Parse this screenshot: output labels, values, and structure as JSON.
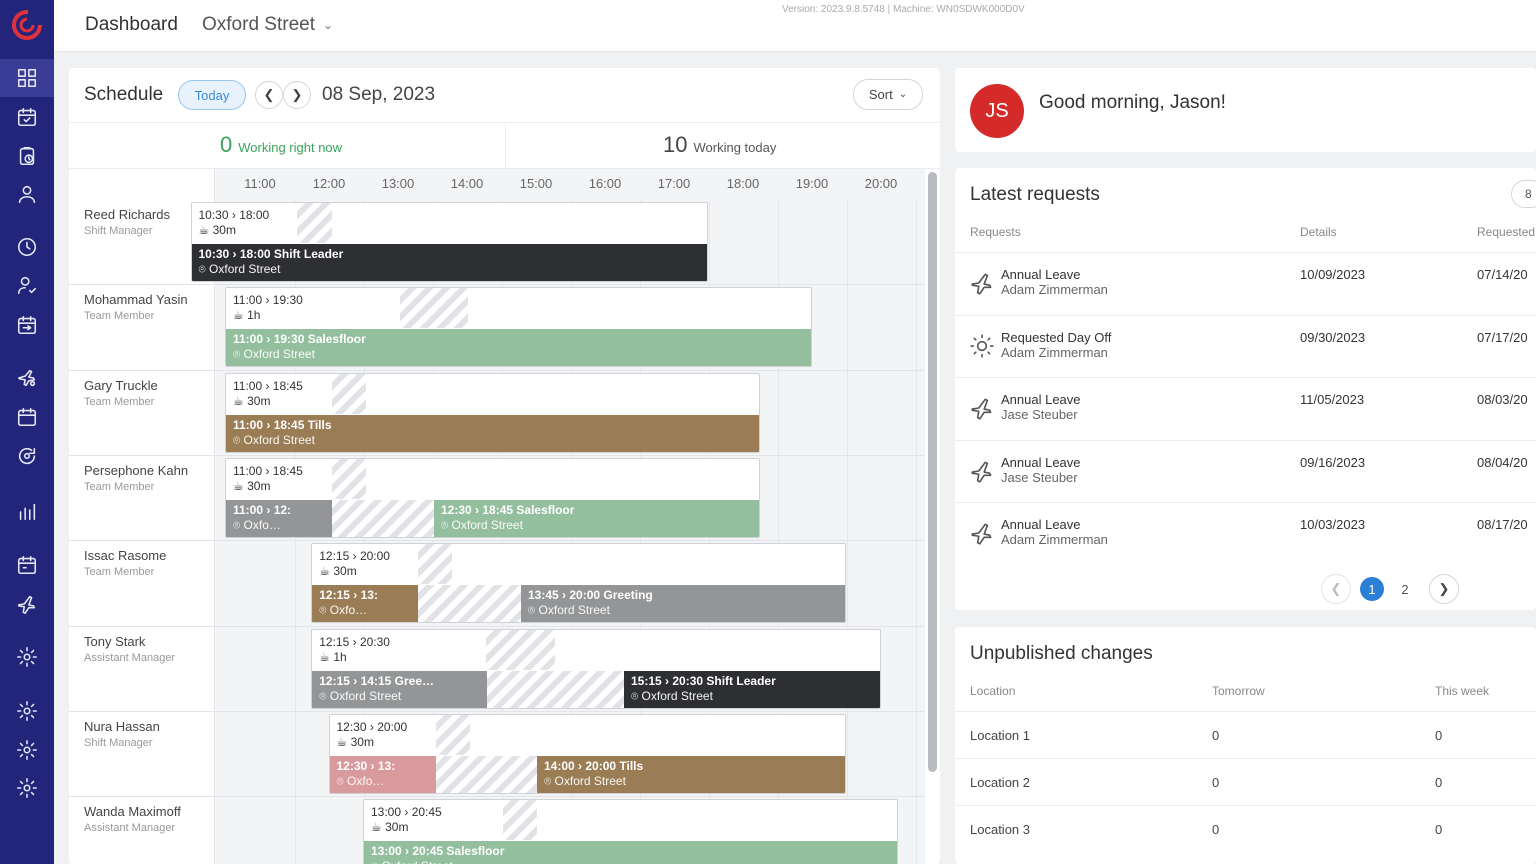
{
  "topbar": {
    "title": "Dashboard",
    "location": "Oxford Street",
    "version": "Version: 2023.9.8.5748 | Machine: WN0SDWK000D0V"
  },
  "sidebar": {
    "items": [
      "grid-icon",
      "calendar-check-icon",
      "clipboard-clock-icon",
      "user-icon",
      "clock-icon",
      "user-check-icon",
      "calendar-swap-icon",
      "plane-settings-icon",
      "calendar-icon",
      "refresh-settings-icon",
      "bar-chart-icon",
      "calendar-alt-icon",
      "plane-icon",
      "gear-icon",
      "gear-icon",
      "gear-icon",
      "gear-icon"
    ]
  },
  "schedule": {
    "title": "Schedule",
    "today_label": "Today",
    "date": "08 Sep, 2023",
    "sort_label": "Sort",
    "working_now_count": "0",
    "working_now_label": "Working right now",
    "working_today_count": "10",
    "working_today_label": "Working today",
    "hours": [
      "11:00",
      "12:00",
      "13:00",
      "14:00",
      "15:00",
      "16:00",
      "17:00",
      "18:00",
      "19:00",
      "20:00"
    ],
    "employees": [
      {
        "name": "Reed Richards",
        "role": "Shift Manager",
        "summary": "10:30 › 18:00",
        "break": "30m",
        "segments": [
          {
            "time": "10:30 › 18:00",
            "label": "Shift Leader",
            "location": "Oxford Street",
            "color": "#2e2f33"
          }
        ]
      },
      {
        "name": "Mohammad Yasin",
        "role": "Team Member",
        "summary": "11:00 › 19:30",
        "break": "1h",
        "segments": [
          {
            "time": "11:00 › 19:30",
            "label": "Salesfloor",
            "location": "Oxford Street",
            "color": "#93bf9f"
          }
        ]
      },
      {
        "name": "Gary Truckle",
        "role": "Team Member",
        "summary": "11:00 › 18:45",
        "break": "30m",
        "segments": [
          {
            "time": "11:00 › 18:45",
            "label": "Tills",
            "location": "Oxford Street",
            "color": "#9a7c55"
          }
        ]
      },
      {
        "name": "Persephone Kahn",
        "role": "Team Member",
        "summary": "11:00 › 18:45",
        "break": "30m",
        "segments": [
          {
            "time": "11:00 › 12:",
            "label": "",
            "location": "Oxfo…",
            "color": "#939597"
          },
          {
            "time": "12:30 › 18:45",
            "label": "Salesfloor",
            "location": "Oxford Street",
            "color": "#93bf9f"
          }
        ]
      },
      {
        "name": "Issac Rasome",
        "role": "Team Member",
        "summary": "12:15 › 20:00",
        "break": "30m",
        "segments": [
          {
            "time": "12:15 › 13:",
            "label": "",
            "location": "Oxfo…",
            "color": "#9a7c55"
          },
          {
            "time": "13:45 › 20:00",
            "label": "Greeting",
            "location": "Oxford Street",
            "color": "#939597"
          }
        ]
      },
      {
        "name": "Tony Stark",
        "role": "Assistant Manager",
        "summary": "12:15 › 20:30",
        "break": "1h",
        "segments": [
          {
            "time": "12:15 › 14:15",
            "label": "Gree…",
            "location": "Oxford Street",
            "color": "#939597"
          },
          {
            "time": "15:15 › 20:30",
            "label": "Shift Leader",
            "location": "Oxford Street",
            "color": "#2e2f33"
          }
        ]
      },
      {
        "name": "Nura Hassan",
        "role": "Shift Manager",
        "summary": "12:30 › 20:00",
        "break": "30m",
        "segments": [
          {
            "time": "12:30 › 13:",
            "label": "",
            "location": "Oxfo…",
            "color": "#d99a9e"
          },
          {
            "time": "14:00 › 20:00",
            "label": "Tills",
            "location": "Oxford Street",
            "color": "#9a7c55"
          }
        ]
      },
      {
        "name": "Wanda Maximoff",
        "role": "Assistant Manager",
        "summary": "13:00 › 20:45",
        "break": "30m",
        "segments": [
          {
            "time": "13:00 › 20:45",
            "label": "Salesfloor",
            "location": "Oxford Street",
            "color": "#93bf9f"
          }
        ]
      }
    ]
  },
  "greeting": {
    "initials": "JS",
    "text": "Good morning, Jason!"
  },
  "requests": {
    "title": "Latest requests",
    "badge": "8",
    "columns": [
      "Requests",
      "Details",
      "Requested"
    ],
    "rows": [
      {
        "icon": "plane-icon",
        "type": "Annual Leave",
        "who": "Adam Zimmerman",
        "details": "10/09/2023",
        "requested": "07/14/20"
      },
      {
        "icon": "sun-icon",
        "type": "Requested Day Off",
        "who": "Adam Zimmerman",
        "details": "09/30/2023",
        "requested": "07/17/20"
      },
      {
        "icon": "plane-icon",
        "type": "Annual Leave",
        "who": "Jase Steuber",
        "details": "11/05/2023",
        "requested": "08/03/20"
      },
      {
        "icon": "plane-icon",
        "type": "Annual Leave",
        "who": "Jase Steuber",
        "details": "09/16/2023",
        "requested": "08/04/20"
      },
      {
        "icon": "plane-icon",
        "type": "Annual Leave",
        "who": "Adam Zimmerman",
        "details": "10/03/2023",
        "requested": "08/17/20"
      }
    ],
    "pages": [
      "1",
      "2"
    ],
    "current_page": "1"
  },
  "unpublished": {
    "title": "Unpublished changes",
    "columns": [
      "Location",
      "Tomorrow",
      "This week"
    ],
    "rows": [
      {
        "location": "Location 1",
        "tomorrow": "0",
        "week": "0"
      },
      {
        "location": "Location 2",
        "tomorrow": "0",
        "week": "0"
      },
      {
        "location": "Location 3",
        "tomorrow": "0",
        "week": "0"
      }
    ]
  }
}
